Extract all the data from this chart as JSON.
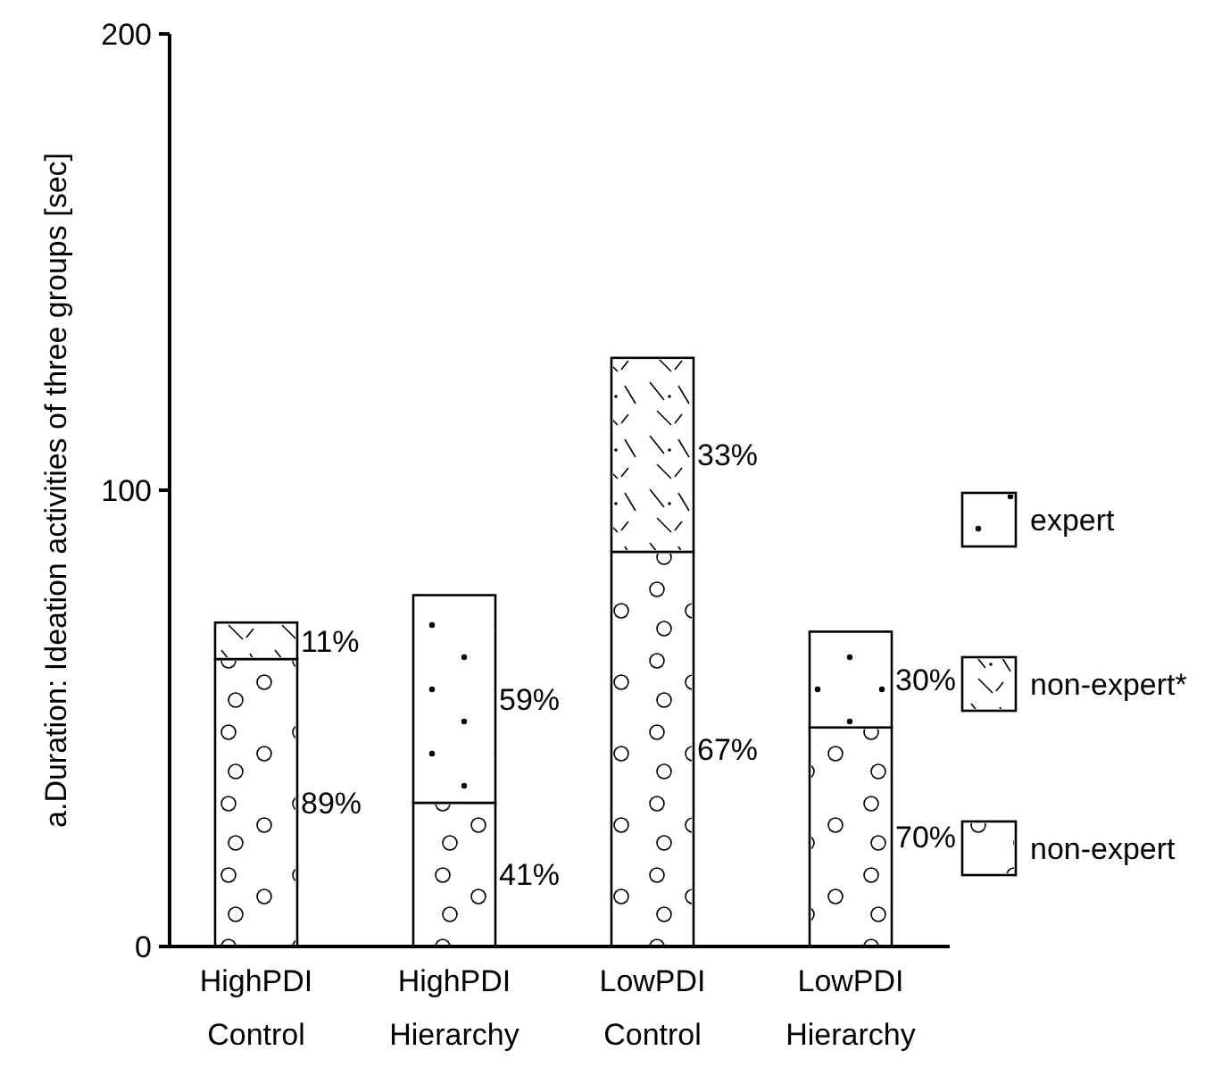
{
  "chart_data": {
    "type": "bar",
    "stacked": true,
    "ylabel": "a.Duration: Ideation activities of three groups [sec]",
    "categories": [
      "HighPDI Control",
      "HighPDI Hierarchy",
      "LowPDI Control",
      "LowPDI Hierarchy"
    ],
    "ylim": [
      0,
      200
    ],
    "yticks": [
      0,
      100,
      200
    ],
    "grid": false,
    "legend": "right",
    "series": [
      {
        "name": "non-expert",
        "color": "#ffffff",
        "values": [
          63,
          31.5,
          86.5,
          48
        ]
      },
      {
        "name": "non-expert*",
        "color": "#ffffff",
        "values": [
          8,
          null,
          42.5,
          null
        ]
      },
      {
        "name": "expert",
        "color": "#ffffff",
        "values": [
          null,
          45.5,
          null,
          21
        ]
      }
    ],
    "annotations": [
      "89%",
      "11%",
      "41%",
      "59%",
      "67%",
      "33%",
      "70%",
      "30%"
    ]
  }
}
